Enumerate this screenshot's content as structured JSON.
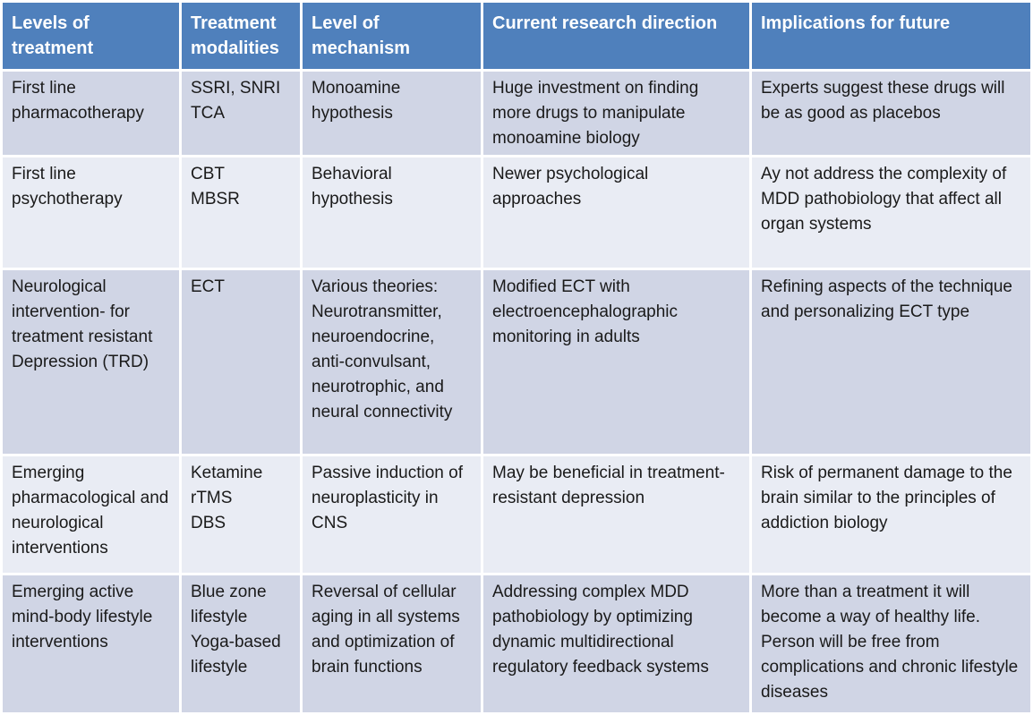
{
  "colors": {
    "header_bg": "#4f80bc",
    "band_dark": "#d0d5e5",
    "band_light": "#e9ecf4",
    "header_text": "#ffffff",
    "body_text": "#1a1a1a",
    "divider": "#ffffff"
  },
  "table": {
    "columns": [
      "Levels of treatment",
      "Treatment modalities",
      "Level of mechanism",
      "Current research direction",
      "Implications for future"
    ],
    "rows": [
      {
        "cells": [
          "First line pharmacotherapy",
          "SSRI, SNRI\nTCA",
          "Monoamine hypothesis",
          "Huge investment on finding more drugs to manipulate monoamine biology",
          "Experts suggest these drugs will be as good as placebos"
        ]
      },
      {
        "cells": [
          "First line psychotherapy",
          "CBT\nMBSR",
          "Behavioral hypothesis",
          "Newer psychological approaches",
          "Ay not address the complexity of MDD pathobiology that affect all organ systems"
        ]
      },
      {
        "cells": [
          "Neurological intervention- for treatment resistant Depression (TRD)",
          "ECT",
          "Various theories: Neurotransmitter, neuroendocrine, anti-convulsant, neurotrophic, and neural connectivity",
          "Modified ECT with electroencephalographic monitoring in adults",
          "Refining aspects of the technique and personalizing ECT type"
        ]
      },
      {
        "cells": [
          "Emerging pharmacological and neurological interventions",
          "Ketamine\nrTMS\nDBS",
          "Passive induction of neuroplasticity in CNS",
          "May be beneficial in treatment-resistant depression",
          "Risk of permanent damage to the brain similar to the principles of addiction biology"
        ]
      },
      {
        "cells": [
          "Emerging active mind-body lifestyle interventions",
          "Blue zone lifestyle\nYoga-based lifestyle",
          "Reversal of cellular aging in all systems and optimization of brain functions",
          "Addressing complex MDD pathobiology by optimizing dynamic multidirectional regulatory feedback systems",
          "More than a treatment it will become a way of healthy life. Person will be free from complications and chronic lifestyle diseases"
        ]
      }
    ]
  }
}
